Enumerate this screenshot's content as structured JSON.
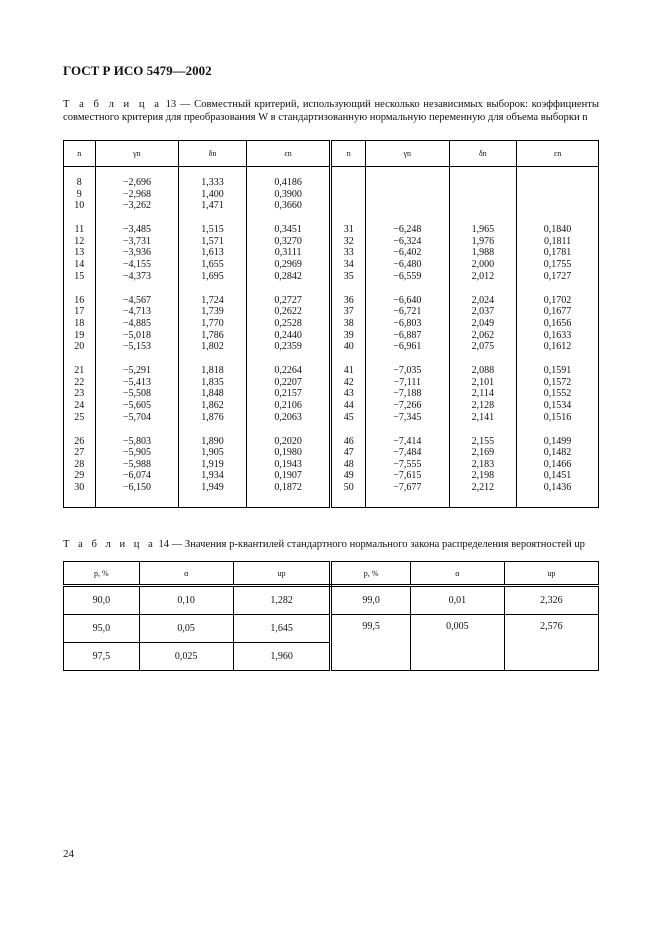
{
  "header": {
    "doc_title": "ГОСТ Р ИСО 5479—2002"
  },
  "table13": {
    "label": "Т а б л и ц а",
    "caption": "13 — Совместный критерий, использующий несколько независимых выборок: коэффициенты совместного критерия для преобразования W в стандартизованную нормальную переменную для объема выборки n",
    "headers": [
      "n",
      "γn",
      "δn",
      "εn",
      "n",
      "γn",
      "δn",
      "εn"
    ],
    "groups": [
      {
        "left": [
          [
            "8",
            "−2,696",
            "1,333",
            "0,4186"
          ],
          [
            "9",
            "−2,968",
            "1,400",
            "0,3900"
          ],
          [
            "10",
            "−3,262",
            "1,471",
            "0,3660"
          ]
        ],
        "right": []
      },
      {
        "left": [
          [
            "11",
            "−3,485",
            "1,515",
            "0,3451"
          ],
          [
            "12",
            "−3,731",
            "1,571",
            "0,3270"
          ],
          [
            "13",
            "−3,936",
            "1,613",
            "0,3111"
          ],
          [
            "14",
            "−4,155",
            "1,655",
            "0,2969"
          ],
          [
            "15",
            "−4,373",
            "1,695",
            "0,2842"
          ]
        ],
        "right": [
          [
            "31",
            "−6,248",
            "1,965",
            "0,1840"
          ],
          [
            "32",
            "−6,324",
            "1,976",
            "0,1811"
          ],
          [
            "33",
            "−6,402",
            "1,988",
            "0,1781"
          ],
          [
            "34",
            "−6,480",
            "2,000",
            "0,1755"
          ],
          [
            "35",
            "−6,559",
            "2,012",
            "0,1727"
          ]
        ]
      },
      {
        "left": [
          [
            "16",
            "−4,567",
            "1,724",
            "0,2727"
          ],
          [
            "17",
            "−4,713",
            "1,739",
            "0,2622"
          ],
          [
            "18",
            "−4,885",
            "1,770",
            "0,2528"
          ],
          [
            "19",
            "−5,018",
            "1,786",
            "0,2440"
          ],
          [
            "20",
            "−5,153",
            "1,802",
            "0,2359"
          ]
        ],
        "right": [
          [
            "36",
            "−6,640",
            "2,024",
            "0,1702"
          ],
          [
            "37",
            "−6,721",
            "2,037",
            "0,1677"
          ],
          [
            "38",
            "−6,803",
            "2,049",
            "0,1656"
          ],
          [
            "39",
            "−6,887",
            "2,062",
            "0,1633"
          ],
          [
            "40",
            "−6,961",
            "2,075",
            "0,1612"
          ]
        ]
      },
      {
        "left": [
          [
            "21",
            "−5,291",
            "1,818",
            "0,2264"
          ],
          [
            "22",
            "−5,413",
            "1,835",
            "0,2207"
          ],
          [
            "23",
            "−5,508",
            "1,848",
            "0,2157"
          ],
          [
            "24",
            "−5,605",
            "1,862",
            "0,2106"
          ],
          [
            "25",
            "−5,704",
            "1,876",
            "0,2063"
          ]
        ],
        "right": [
          [
            "41",
            "−7,035",
            "2,088",
            "0,1591"
          ],
          [
            "42",
            "−7,111",
            "2,101",
            "0,1572"
          ],
          [
            "43",
            "−7,188",
            "2,114",
            "0,1552"
          ],
          [
            "44",
            "−7,266",
            "2,128",
            "0,1534"
          ],
          [
            "45",
            "−7,345",
            "2,141",
            "0,1516"
          ]
        ]
      },
      {
        "left": [
          [
            "26",
            "−5,803",
            "1,890",
            "0,2020"
          ],
          [
            "27",
            "−5,905",
            "1,905",
            "0,1980"
          ],
          [
            "28",
            "−5,988",
            "1,919",
            "0,1943"
          ],
          [
            "29",
            "−6,074",
            "1,934",
            "0,1907"
          ],
          [
            "30",
            "−6,150",
            "1,949",
            "0,1872"
          ]
        ],
        "right": [
          [
            "46",
            "−7,414",
            "2,155",
            "0,1499"
          ],
          [
            "47",
            "−7,484",
            "2,169",
            "0,1482"
          ],
          [
            "48",
            "−7,555",
            "2,183",
            "0,1466"
          ],
          [
            "49",
            "−7,615",
            "2,198",
            "0,1451"
          ],
          [
            "50",
            "−7,677",
            "2,212",
            "0,1436"
          ]
        ]
      }
    ]
  },
  "table14": {
    "label": "Т а б л и ц а",
    "caption": "14 — Значения p-квантилей стандартного нормального закона распределения вероятностей up",
    "headers": [
      "p, %",
      "α",
      "up",
      "p, %",
      "α",
      "up"
    ],
    "left": [
      [
        "90,0",
        "0,10",
        "1,282"
      ],
      [
        "95,0",
        "0,05",
        "1,645"
      ],
      [
        "97,5",
        "0,025",
        "1,960"
      ]
    ],
    "right": [
      [
        "99,0",
        "0,01",
        "2,326"
      ],
      [
        "99,5",
        "0,005",
        "2,576"
      ]
    ]
  },
  "footer": {
    "page_number": "24"
  }
}
